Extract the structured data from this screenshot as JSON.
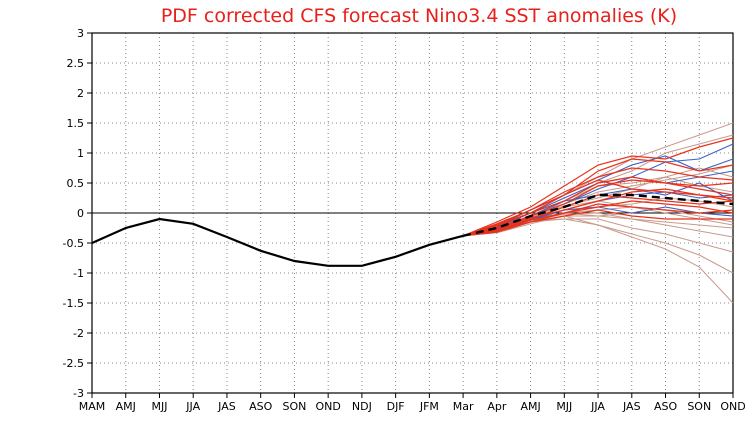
{
  "chart_data": {
    "type": "line",
    "title": "PDF corrected CFS forecast Nino3.4 SST anomalies (K)",
    "xlabel": "",
    "ylabel": "",
    "categories": [
      "MAM",
      "AMJ",
      "MJJ",
      "JJA",
      "JAS",
      "ASO",
      "SON",
      "OND",
      "NDJ",
      "DJF",
      "JFM",
      "Mar",
      "Apr",
      "AMJ",
      "MJJ",
      "JJA",
      "JAS",
      "ASO",
      "SON",
      "OND"
    ],
    "yticks": [
      "3",
      "2.5",
      "2",
      "1.5",
      "1",
      "0.5",
      "0",
      "-0.5",
      "-1",
      "-1.5",
      "-2",
      "-2.5",
      "-3"
    ],
    "ylim": [
      -3,
      3
    ],
    "grid": "dotted",
    "zero_line": 0,
    "colors": {
      "observed": "#000000",
      "ensemble_mean": "#000000",
      "members_red": "#e8321c",
      "members_blue": "#3a62c4",
      "members_pink": "#c99a8c",
      "title": "#e8201c"
    },
    "observed": [
      -0.5,
      -0.25,
      -0.1,
      -0.18,
      -0.4,
      -0.63,
      -0.8,
      -0.88,
      -0.88,
      -0.73,
      -0.53,
      -0.38
    ],
    "ensemble_mean": {
      "x_start_index": 11,
      "values": [
        -0.38,
        -0.25,
        -0.05,
        0.1,
        0.3,
        0.3,
        0.25,
        0.2,
        0.15
      ]
    },
    "members": {
      "x_start_index": 11,
      "red": [
        [
          -0.38,
          -0.2,
          0.05,
          0.3,
          0.7,
          0.9,
          0.85,
          0.7,
          0.8
        ],
        [
          -0.38,
          -0.15,
          0.1,
          0.45,
          0.8,
          0.95,
          0.9,
          1.1,
          1.25
        ],
        [
          -0.38,
          -0.22,
          0.0,
          0.2,
          0.5,
          0.6,
          0.5,
          0.45,
          0.5
        ],
        [
          -0.38,
          -0.28,
          -0.1,
          0.1,
          0.3,
          0.25,
          0.2,
          0.15,
          0.2
        ],
        [
          -0.38,
          -0.3,
          -0.15,
          0.0,
          0.15,
          0.1,
          0.05,
          0.0,
          0.05
        ],
        [
          -0.38,
          -0.25,
          -0.05,
          0.15,
          0.45,
          0.55,
          0.5,
          0.4,
          0.3
        ],
        [
          -0.38,
          -0.32,
          -0.15,
          -0.05,
          0.05,
          -0.05,
          -0.1,
          -0.1,
          -0.1
        ],
        [
          -0.38,
          -0.18,
          0.05,
          0.35,
          0.6,
          0.75,
          0.7,
          0.6,
          0.55
        ],
        [
          -0.38,
          -0.26,
          -0.08,
          0.05,
          0.2,
          0.35,
          0.4,
          0.3,
          0.25
        ],
        [
          -0.38,
          -0.2,
          0.0,
          0.3,
          0.55,
          0.4,
          0.35,
          0.3,
          0.2
        ],
        [
          -0.38,
          -0.3,
          -0.12,
          0.0,
          0.1,
          0.2,
          0.15,
          0.1,
          0.0
        ]
      ],
      "blue": [
        [
          -0.38,
          -0.22,
          0.05,
          0.3,
          0.55,
          0.8,
          0.95,
          0.7,
          0.9
        ],
        [
          -0.38,
          -0.26,
          -0.05,
          0.15,
          0.4,
          0.6,
          0.85,
          0.9,
          1.15
        ],
        [
          -0.38,
          -0.28,
          -0.05,
          0.2,
          0.3,
          0.4,
          0.3,
          0.5,
          0.2
        ],
        [
          -0.38,
          -0.3,
          -0.1,
          0.05,
          0.2,
          0.3,
          0.35,
          0.25,
          0.3
        ],
        [
          -0.38,
          -0.24,
          0.0,
          0.25,
          0.5,
          0.6,
          0.5,
          0.6,
          0.7
        ],
        [
          -0.38,
          -0.32,
          -0.12,
          0.05,
          0.1,
          0.0,
          0.1,
          0.0,
          -0.05
        ]
      ],
      "pink": [
        [
          -0.38,
          -0.25,
          0.0,
          0.3,
          0.6,
          0.9,
          1.1,
          1.3,
          1.5
        ],
        [
          -0.38,
          -0.28,
          -0.1,
          0.2,
          0.5,
          0.7,
          1.0,
          1.15,
          1.3
        ],
        [
          -0.38,
          -0.3,
          -0.15,
          -0.1,
          -0.2,
          -0.4,
          -0.6,
          -0.9,
          -1.5
        ],
        [
          -0.38,
          -0.32,
          -0.15,
          -0.05,
          -0.2,
          -0.35,
          -0.5,
          -0.7,
          -1.0
        ],
        [
          -0.38,
          -0.3,
          -0.12,
          -0.1,
          -0.1,
          -0.25,
          -0.35,
          -0.5,
          -0.65
        ],
        [
          -0.38,
          -0.28,
          -0.1,
          0.0,
          -0.05,
          -0.1,
          -0.2,
          -0.3,
          -0.4
        ],
        [
          -0.38,
          -0.26,
          -0.08,
          0.1,
          0.2,
          0.1,
          0.0,
          -0.1,
          -0.2
        ],
        [
          -0.38,
          -0.24,
          -0.05,
          0.15,
          0.35,
          0.45,
          0.55,
          0.65,
          0.8
        ],
        [
          -0.38,
          -0.3,
          -0.1,
          0.0,
          0.05,
          0.1,
          0.05,
          -0.05,
          -0.15
        ],
        [
          -0.38,
          -0.27,
          -0.06,
          0.12,
          0.25,
          0.4,
          0.6,
          0.45,
          0.35
        ],
        [
          -0.38,
          -0.31,
          -0.12,
          -0.02,
          0.0,
          -0.1,
          -0.15,
          -0.2,
          -0.25
        ],
        [
          -0.38,
          -0.26,
          -0.04,
          0.2,
          0.45,
          0.5,
          0.6,
          0.75,
          0.6
        ],
        [
          -0.38,
          -0.29,
          -0.1,
          0.05,
          0.1,
          0.15,
          0.25,
          0.2,
          0.1
        ],
        [
          -0.38,
          -0.33,
          -0.18,
          -0.05,
          -0.05,
          0.0,
          0.1,
          0.0,
          -0.05
        ]
      ]
    }
  }
}
